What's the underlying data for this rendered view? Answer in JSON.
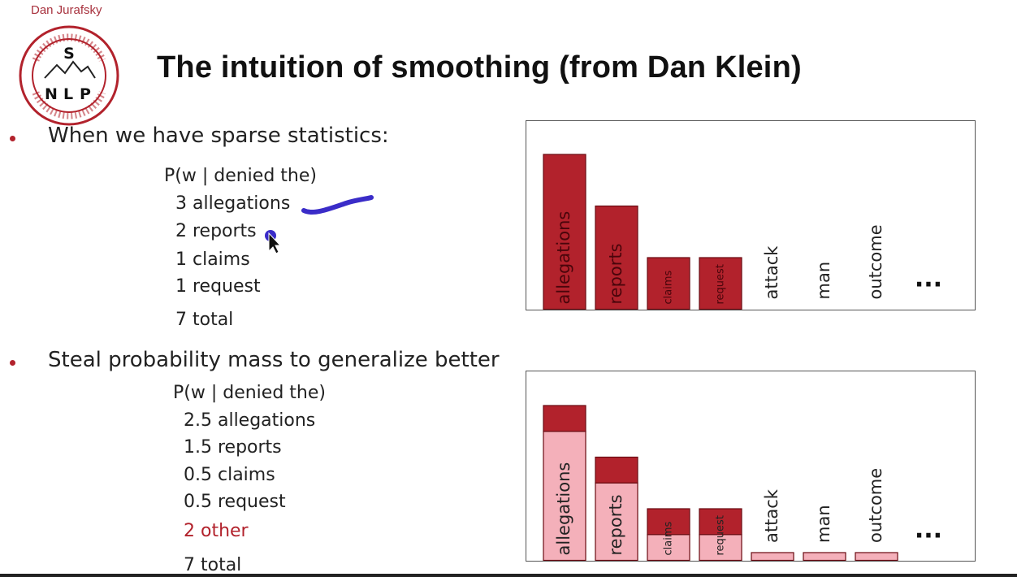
{
  "header": {
    "author": "Dan Jurafsky",
    "title": "The intuition of smoothing (from Dan Klein)"
  },
  "logo": {
    "letters": [
      "S",
      "N",
      "L",
      "P"
    ],
    "ring_text_top": "Stanford University",
    "ring_text_bottom": "Natural Language Processing",
    "color": "#b2222c"
  },
  "section1": {
    "bullet": "When we have sparse statistics:",
    "formula": "P(w | denied the)",
    "lines": [
      "3 allegations",
      "2 reports",
      "1 claims",
      "1 request"
    ],
    "total": "7 total"
  },
  "section2": {
    "bullet": "Steal probability mass to generalize better",
    "formula": "P(w | denied the)",
    "lines": [
      "2.5 allegations",
      "1.5 reports",
      "0.5 claims",
      "0.5 request"
    ],
    "other": "2 other",
    "total": "7 total"
  },
  "colors": {
    "dark_red": "#b2222c",
    "light_pink": "#f4b0ba",
    "annotation_blue": "#3a2cc8"
  },
  "chart_data": [
    {
      "type": "bar",
      "categories": [
        "allegations",
        "reports",
        "claims",
        "request",
        "attack",
        "man",
        "outcome"
      ],
      "values": [
        3,
        2,
        1,
        1,
        0,
        0,
        0
      ],
      "ellipsis": "..."
    },
    {
      "type": "bar",
      "stacked": true,
      "categories": [
        "allegations",
        "reports",
        "claims",
        "request",
        "attack",
        "man",
        "outcome"
      ],
      "series": [
        {
          "values": [
            2.5,
            1.5,
            0.5,
            0.5,
            0,
            0,
            0
          ],
          "color": "#f4b0ba"
        },
        {
          "values": [
            0.5,
            0.5,
            0.5,
            0.5,
            0,
            0,
            0
          ],
          "color": "#b2222c"
        },
        {
          "values": [
            0,
            0,
            0,
            0,
            0.15,
            0.15,
            0.15
          ],
          "color": "#f4b0ba"
        }
      ],
      "ellipsis": "..."
    }
  ]
}
